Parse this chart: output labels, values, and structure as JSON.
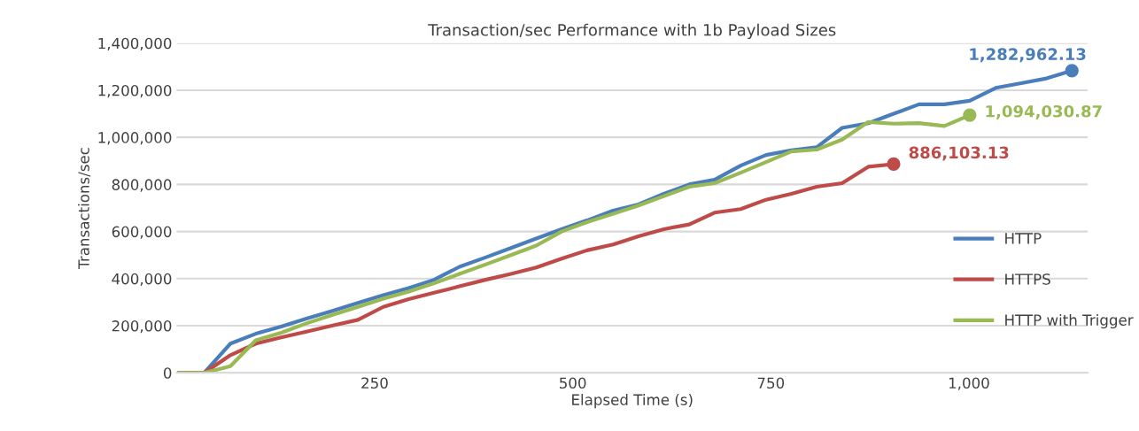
{
  "chart_data": {
    "type": "line",
    "title": "Transaction/sec Performance with 1b Payload Sizes",
    "xlabel": "Elapsed Time (s)",
    "ylabel": "Transactions/sec",
    "series": [
      {
        "name": "HTTP",
        "color": "#4a7ebb",
        "x": [
          3,
          35,
          68,
          100,
          132,
          164,
          196,
          229,
          261,
          293,
          325,
          357,
          390,
          422,
          454,
          486,
          518,
          551,
          583,
          615,
          647,
          679,
          712,
          744,
          776,
          808,
          840,
          873,
          905,
          937,
          969,
          1001,
          1034,
          1066,
          1098,
          1130
        ],
        "values": [
          0,
          0,
          124000,
          166000,
          196000,
          230000,
          262000,
          297000,
          330000,
          360000,
          395000,
          450000,
          490000,
          530000,
          570000,
          610000,
          647000,
          689000,
          715000,
          760000,
          800000,
          820000,
          880000,
          925000,
          945000,
          958000,
          1040000,
          1060000,
          1100000,
          1140000,
          1140000,
          1155000,
          1210000,
          1230000,
          1250000,
          1282962.13
        ],
        "value_labels": [
          null,
          null,
          null,
          null,
          null,
          null,
          null,
          null,
          null,
          null,
          null,
          null,
          null,
          null,
          null,
          null,
          null,
          null,
          null,
          null,
          null,
          null,
          null,
          null,
          null,
          null,
          null,
          null,
          null,
          null,
          null,
          null,
          null,
          null,
          null,
          "1,282,962.13"
        ]
      },
      {
        "name": "HTTPS",
        "color": "#be4b48",
        "x": [
          3,
          35,
          68,
          100,
          132,
          164,
          196,
          229,
          261,
          293,
          325,
          357,
          390,
          422,
          454,
          486,
          518,
          551,
          583,
          615,
          647,
          679,
          712,
          744,
          776,
          808,
          840,
          873,
          905
        ],
        "values": [
          0,
          0,
          75000,
          124000,
          150000,
          175000,
          200000,
          225000,
          280000,
          313000,
          340000,
          367000,
          395000,
          420000,
          447000,
          485000,
          520000,
          545000,
          580000,
          610000,
          630000,
          680000,
          695000,
          735000,
          760000,
          790000,
          805000,
          875000,
          886103.13
        ],
        "value_labels": [
          null,
          null,
          null,
          null,
          null,
          null,
          null,
          null,
          null,
          null,
          null,
          null,
          null,
          null,
          null,
          null,
          null,
          null,
          null,
          null,
          null,
          null,
          null,
          null,
          null,
          null,
          null,
          null,
          "886,103.13"
        ]
      },
      {
        "name": "HTTP with Trigger",
        "color": "#98b954",
        "x": [
          3,
          35,
          68,
          100,
          132,
          164,
          196,
          229,
          261,
          293,
          325,
          357,
          390,
          422,
          454,
          486,
          518,
          551,
          583,
          615,
          647,
          679,
          712,
          744,
          776,
          808,
          840,
          873,
          905,
          937,
          969,
          1001
        ],
        "values": [
          0,
          0,
          28000,
          138000,
          170000,
          210000,
          245000,
          280000,
          315000,
          345000,
          380000,
          420000,
          460000,
          500000,
          540000,
          600000,
          640000,
          675000,
          710000,
          750000,
          790000,
          805000,
          850000,
          895000,
          940000,
          948000,
          990000,
          1065000,
          1058000,
          1060000,
          1048000,
          1094030.87
        ],
        "value_labels": [
          null,
          null,
          null,
          null,
          null,
          null,
          null,
          null,
          null,
          null,
          null,
          null,
          null,
          null,
          null,
          null,
          null,
          null,
          null,
          null,
          null,
          null,
          null,
          null,
          null,
          null,
          null,
          null,
          null,
          null,
          null,
          "1,094,030.87"
        ]
      }
    ],
    "xlim": [
      0,
      1150
    ],
    "xticks": [
      250,
      500,
      750,
      {
        "value": 1000,
        "label": "1,000"
      }
    ],
    "ylim": [
      0,
      1400000
    ],
    "yticks": [
      {
        "value": 0,
        "label": "0"
      },
      {
        "value": 200000,
        "label": "200,000"
      },
      {
        "value": 400000,
        "label": "400,000"
      },
      {
        "value": 600000,
        "label": "600,000"
      },
      {
        "value": 800000,
        "label": "800,000"
      },
      {
        "value": 1000000,
        "label": "1,000,000"
      },
      {
        "value": 1200000,
        "label": "1,200,000"
      },
      {
        "value": 1400000,
        "label": "1,400,000"
      }
    ],
    "grid": "y",
    "legend": "right"
  }
}
